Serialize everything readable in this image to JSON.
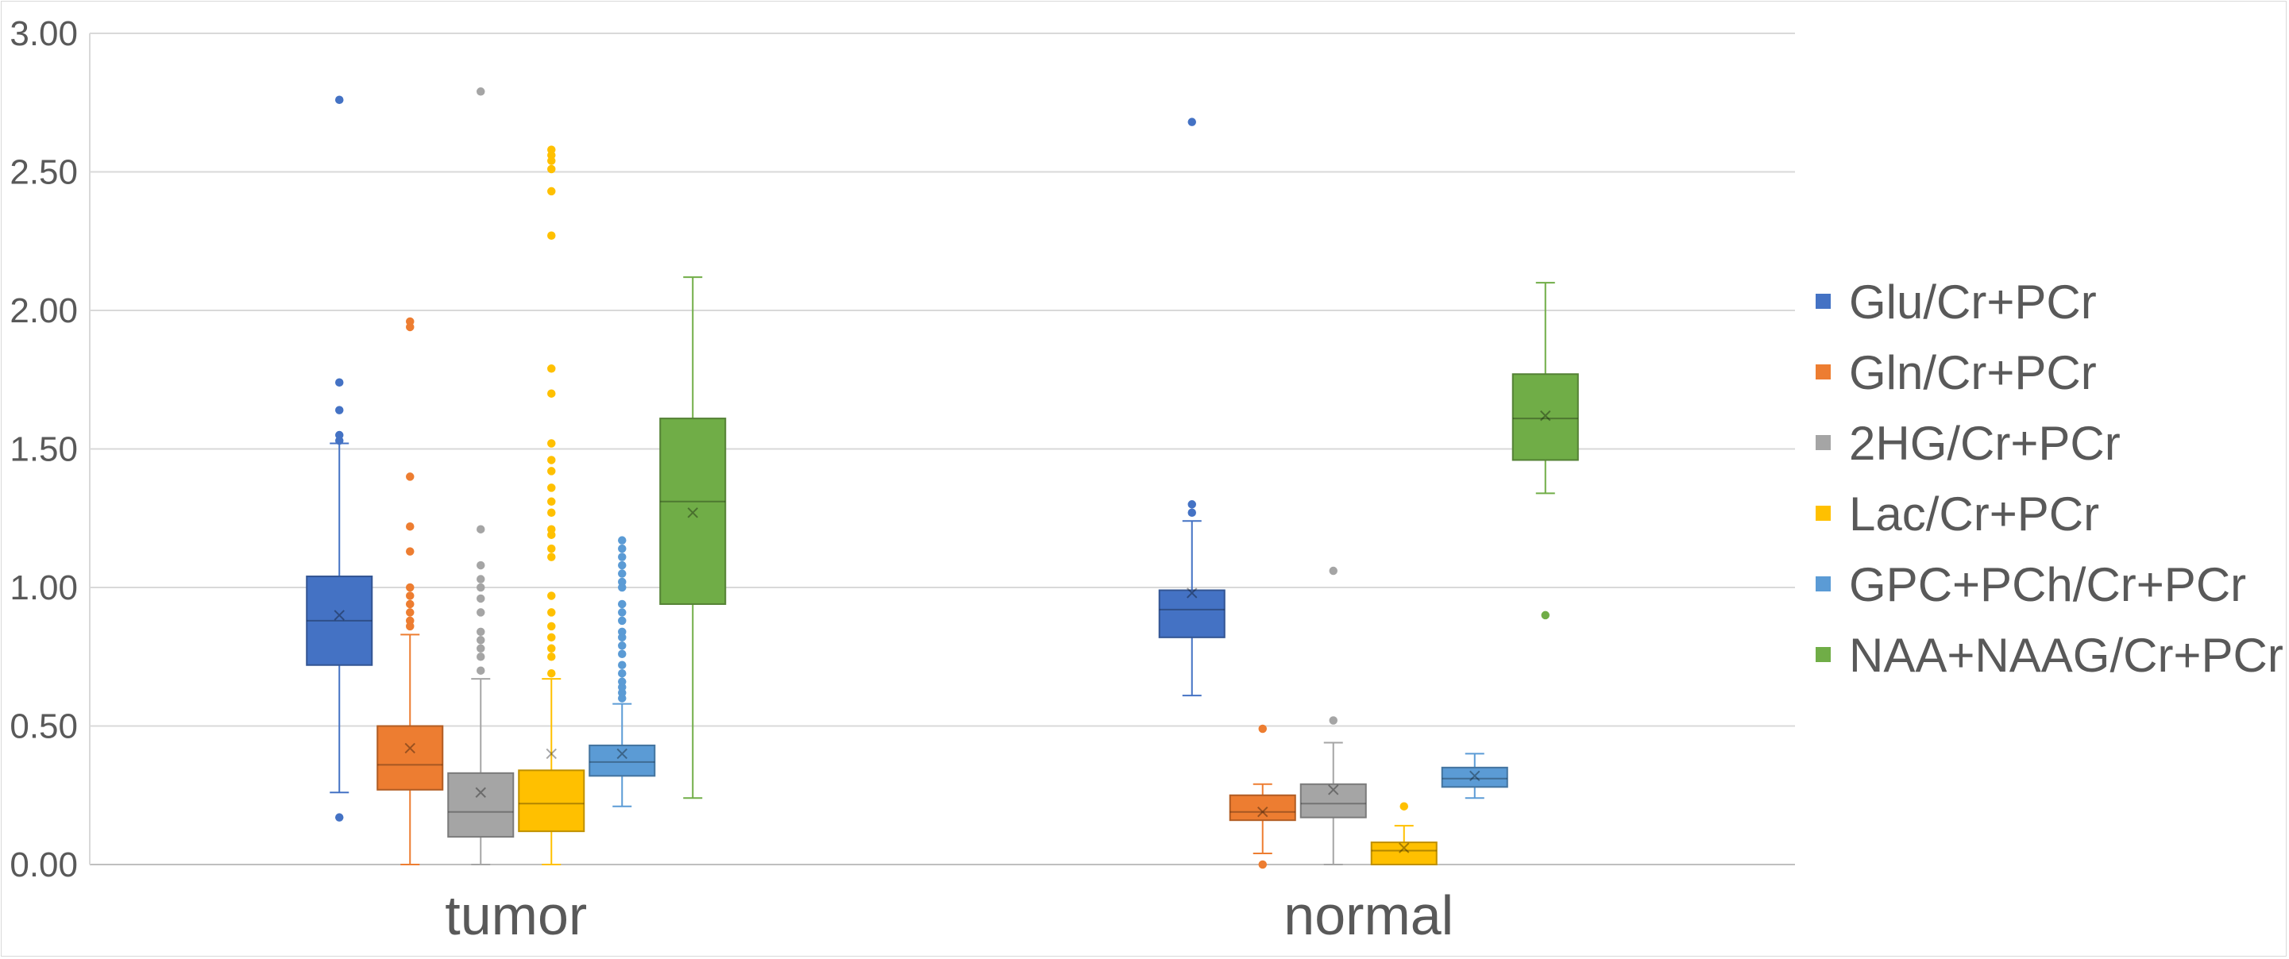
{
  "chart_data": {
    "type": "box",
    "categories": [
      "tumor",
      "normal"
    ],
    "ylim": [
      0,
      3
    ],
    "yticks": [
      "0.00",
      "0.50",
      "1.00",
      "1.50",
      "2.00",
      "2.50",
      "3.00"
    ],
    "grid": true,
    "legend_position": "right",
    "series": [
      {
        "name": "Glu/Cr+PCr",
        "color": "#4472C4",
        "boxes": [
          {
            "min": 0.26,
            "q1": 0.72,
            "median": 0.88,
            "q3": 1.04,
            "max": 1.52,
            "mean": 0.9,
            "outliers": [
              0.17,
              1.53,
              1.55,
              1.64,
              1.74,
              2.76
            ]
          },
          {
            "min": 0.61,
            "q1": 0.82,
            "median": 0.92,
            "q3": 0.99,
            "max": 1.24,
            "mean": 0.98,
            "outliers": [
              1.27,
              1.3,
              2.68
            ]
          }
        ]
      },
      {
        "name": "Gln/Cr+PCr",
        "color": "#ED7D31",
        "boxes": [
          {
            "min": 0.0,
            "q1": 0.27,
            "median": 0.36,
            "q3": 0.5,
            "max": 0.83,
            "mean": 0.42,
            "outliers": [
              0.86,
              0.88,
              0.91,
              0.94,
              0.97,
              1.0,
              1.13,
              1.22,
              1.4,
              1.94,
              1.96
            ]
          },
          {
            "min": 0.04,
            "q1": 0.16,
            "median": 0.19,
            "q3": 0.25,
            "max": 0.29,
            "mean": 0.19,
            "outliers": [
              0.0,
              0.49
            ]
          }
        ]
      },
      {
        "name": "2HG/Cr+PCr",
        "color": "#A5A5A5",
        "boxes": [
          {
            "min": 0.0,
            "q1": 0.1,
            "median": 0.19,
            "q3": 0.33,
            "max": 0.67,
            "mean": 0.26,
            "outliers": [
              0.7,
              0.75,
              0.78,
              0.81,
              0.84,
              0.91,
              0.96,
              1.0,
              1.03,
              1.08,
              1.21,
              2.79
            ]
          },
          {
            "min": 0.0,
            "q1": 0.17,
            "median": 0.22,
            "q3": 0.29,
            "max": 0.44,
            "mean": 0.27,
            "outliers": [
              0.52,
              1.06
            ]
          }
        ]
      },
      {
        "name": "Lac/Cr+PCr",
        "color": "#FFC000",
        "boxes": [
          {
            "min": 0.0,
            "q1": 0.12,
            "median": 0.22,
            "q3": 0.34,
            "max": 0.67,
            "mean": 0.4,
            "outliers": [
              0.69,
              0.75,
              0.78,
              0.82,
              0.86,
              0.91,
              0.97,
              1.11,
              1.14,
              1.19,
              1.21,
              1.27,
              1.31,
              1.36,
              1.42,
              1.46,
              1.52,
              1.7,
              1.79,
              2.27,
              2.43,
              2.51,
              2.54,
              2.56,
              2.58
            ]
          },
          {
            "min": 0.0,
            "q1": 0.0,
            "median": 0.05,
            "q3": 0.08,
            "max": 0.14,
            "mean": 0.06,
            "outliers": [
              0.21
            ]
          }
        ]
      },
      {
        "name": "GPC+PCh/Cr+PCr",
        "color": "#5B9BD5",
        "boxes": [
          {
            "min": 0.21,
            "q1": 0.32,
            "median": 0.37,
            "q3": 0.43,
            "max": 0.58,
            "mean": 0.4,
            "outliers": [
              0.6,
              0.62,
              0.64,
              0.66,
              0.69,
              0.72,
              0.76,
              0.79,
              0.82,
              0.84,
              0.88,
              0.91,
              0.94,
              1.0,
              1.02,
              1.05,
              1.08,
              1.11,
              1.14,
              1.17
            ]
          },
          {
            "min": 0.24,
            "q1": 0.28,
            "median": 0.31,
            "q3": 0.35,
            "max": 0.4,
            "mean": 0.32,
            "outliers": []
          }
        ]
      },
      {
        "name": "NAA+NAAG/Cr+PCr",
        "color": "#70AD47",
        "boxes": [
          {
            "min": 0.24,
            "q1": 0.94,
            "median": 1.31,
            "q3": 1.61,
            "max": 2.12,
            "mean": 1.27,
            "outliers": []
          },
          {
            "min": 1.34,
            "q1": 1.46,
            "median": 1.61,
            "q3": 1.77,
            "max": 2.1,
            "mean": 1.62,
            "outliers": [
              0.9
            ]
          }
        ]
      }
    ]
  }
}
